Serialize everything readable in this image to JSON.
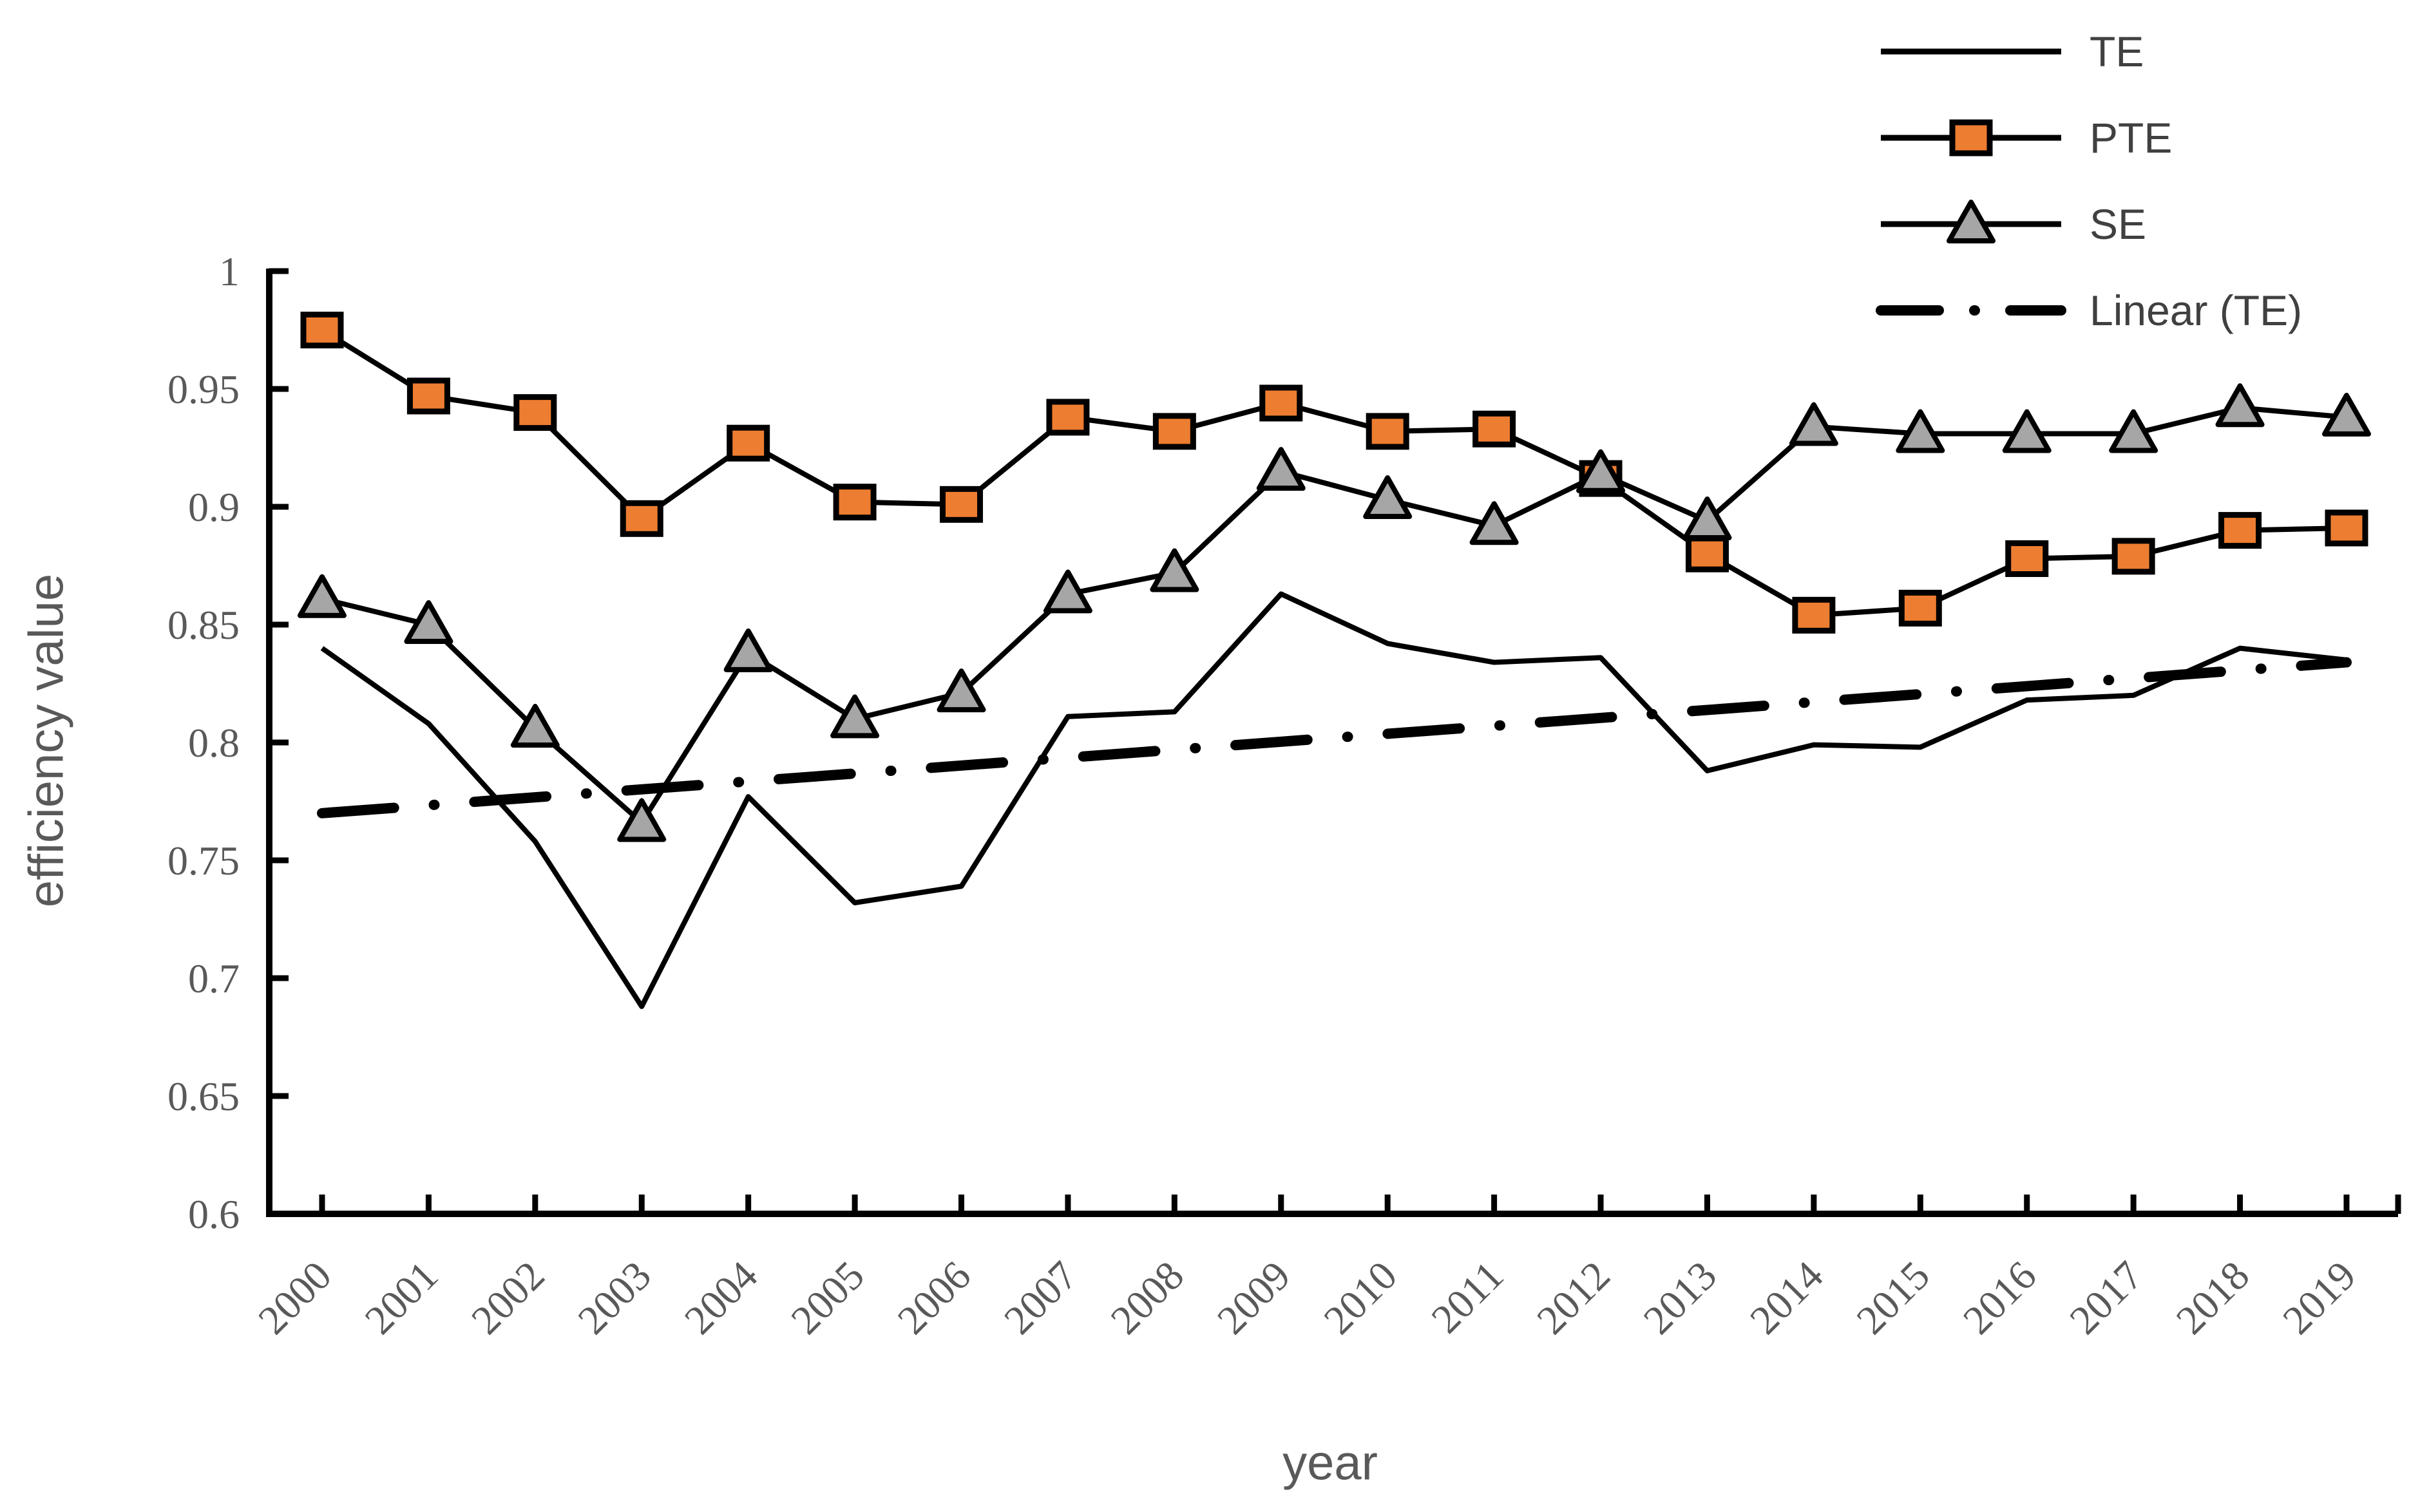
{
  "chart_data": {
    "type": "line",
    "title": "",
    "xlabel": "year",
    "ylabel": "efficiency value",
    "ylim": [
      0.6,
      1.0
    ],
    "ytick_step": 0.05,
    "ytick_labels": [
      "1",
      "0.95",
      "0.9",
      "0.85",
      "0.8",
      "0.75",
      "0.7",
      "0.65",
      "0.6"
    ],
    "grid": false,
    "categories": [
      2000,
      2001,
      2002,
      2003,
      2004,
      2005,
      2006,
      2007,
      2008,
      2009,
      2010,
      2011,
      2012,
      2013,
      2014,
      2015,
      2016,
      2017,
      2018,
      2019
    ],
    "series": [
      {
        "name": "TE",
        "marker": "none",
        "line_color": "#000000",
        "values": [
          0.84,
          0.808,
          0.758,
          0.688,
          0.777,
          0.732,
          0.739,
          0.811,
          0.813,
          0.863,
          0.842,
          0.834,
          0.836,
          0.788,
          0.799,
          0.798,
          0.818,
          0.82,
          0.84,
          0.835
        ]
      },
      {
        "name": "PTE",
        "marker": "square",
        "line_color": "#000000",
        "marker_fill": "#ED7D31",
        "marker_edge": "#000000",
        "values": [
          0.975,
          0.947,
          0.94,
          0.895,
          0.927,
          0.902,
          0.901,
          0.938,
          0.932,
          0.944,
          0.932,
          0.933,
          0.912,
          0.88,
          0.854,
          0.857,
          0.878,
          0.879,
          0.89,
          0.891
        ]
      },
      {
        "name": "SE",
        "marker": "triangle",
        "line_color": "#000000",
        "marker_fill": "#A6A6A6",
        "marker_edge": "#000000",
        "values": [
          0.861,
          0.85,
          0.806,
          0.766,
          0.838,
          0.81,
          0.821,
          0.863,
          0.872,
          0.915,
          0.903,
          0.892,
          0.914,
          0.894,
          0.934,
          0.931,
          0.931,
          0.931,
          0.942,
          0.938
        ]
      }
    ],
    "trendline": {
      "name": "Linear (TE)",
      "of": "TE",
      "style": "dash-dot",
      "color": "#000000",
      "start_value": 0.77,
      "end_value": 0.834
    },
    "legend": {
      "position": "top-right",
      "entries": [
        "TE",
        "PTE",
        "SE",
        "Linear (TE)"
      ]
    }
  },
  "colors": {
    "pte_fill": "#ED7D31",
    "se_fill": "#A6A6A6",
    "line": "#000000",
    "tick_text": "#595959",
    "axis_title_text": "#595959",
    "legend_text": "#404040"
  }
}
